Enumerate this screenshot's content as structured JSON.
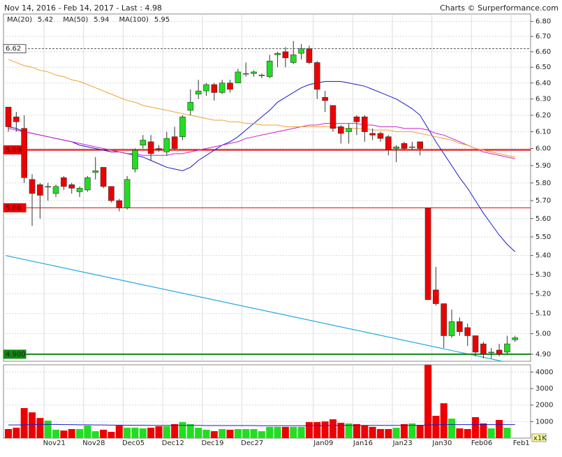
{
  "chart_data": {
    "type": "candlestick",
    "title": "Nov 14, 2016 - Feb 14, 2017 - Last : 4.98",
    "credit": "Charts © Surperformance.com",
    "log_scale": true,
    "grid": true,
    "up_color": "#22dd22",
    "down_color": "#ee0000",
    "categories": [
      null,
      null,
      null,
      null,
      null,
      "Nov21",
      null,
      null,
      null,
      null,
      "Nov28",
      null,
      null,
      null,
      null,
      "Dec05",
      null,
      null,
      null,
      null,
      "Dec12",
      null,
      null,
      null,
      null,
      "Dec19",
      null,
      null,
      null,
      null,
      "Dec27",
      null,
      null,
      null,
      null,
      null,
      null,
      null,
      null,
      "Jan09",
      null,
      null,
      null,
      null,
      "Jan16",
      null,
      null,
      null,
      null,
      "Jan23",
      null,
      null,
      null,
      null,
      "Jan30",
      null,
      null,
      null,
      null,
      "Feb06",
      null,
      null,
      null,
      null,
      "Feb1"
    ],
    "open": [
      6.25,
      6.19,
      6.12,
      5.82,
      5.79,
      5.78,
      5.74,
      5.83,
      5.79,
      5.75,
      5.76,
      5.86,
      5.89,
      5.78,
      5.7,
      5.66,
      5.88,
      6.02,
      6.04,
      6.0,
      5.98,
      6.07,
      6.07,
      6.23,
      6.33,
      6.35,
      6.39,
      6.34,
      6.4,
      6.4,
      6.46,
      6.46,
      6.45,
      6.44,
      6.58,
      6.6,
      6.53,
      6.59,
      6.62,
      6.53,
      6.31,
      6.26,
      6.13,
      6.1,
      6.19,
      6.19,
      6.09,
      6.09,
      6.07,
      6.0,
      6.03,
      6.01,
      6.04,
      5.66,
      5.22,
      5.15,
      4.99,
      5.06,
      5.03,
      4.99,
      4.95,
      4.91,
      4.92,
      4.91,
      4.97
    ],
    "high": [
      6.25,
      6.22,
      6.2,
      5.85,
      5.8,
      5.8,
      5.79,
      5.84,
      5.8,
      5.78,
      5.84,
      5.95,
      5.89,
      5.78,
      5.71,
      5.84,
      6.0,
      6.08,
      6.08,
      6.02,
      6.1,
      6.13,
      6.2,
      6.36,
      6.42,
      6.4,
      6.4,
      6.42,
      6.42,
      6.49,
      6.53,
      6.48,
      6.46,
      6.58,
      6.6,
      6.63,
      6.67,
      6.65,
      6.64,
      6.54,
      6.35,
      6.26,
      6.14,
      6.15,
      6.2,
      6.2,
      6.12,
      6.1,
      6.08,
      6.02,
      6.04,
      6.04,
      6.04,
      5.66,
      5.34,
      5.15,
      5.12,
      5.08,
      5.05,
      4.99,
      4.96,
      4.93,
      4.95,
      4.99,
      4.99
    ],
    "low": [
      6.1,
      6.1,
      5.8,
      5.56,
      5.6,
      5.7,
      5.72,
      5.76,
      5.74,
      5.72,
      5.75,
      5.82,
      5.77,
      5.69,
      5.64,
      5.65,
      5.86,
      6.0,
      5.93,
      5.98,
      5.96,
      5.99,
      6.05,
      6.2,
      6.3,
      6.32,
      6.29,
      6.33,
      6.34,
      6.4,
      6.44,
      6.44,
      6.43,
      6.43,
      6.5,
      6.5,
      6.52,
      6.55,
      6.52,
      6.3,
      6.22,
      6.1,
      6.03,
      6.03,
      6.08,
      6.04,
      6.05,
      6.04,
      5.96,
      5.92,
      5.99,
      5.99,
      5.96,
      5.17,
      5.14,
      4.93,
      4.98,
      4.99,
      4.94,
      4.89,
      4.88,
      4.88,
      4.89,
      4.9,
      4.96
    ],
    "close": [
      6.13,
      6.16,
      5.83,
      5.74,
      5.73,
      5.78,
      5.78,
      5.78,
      5.77,
      5.77,
      5.83,
      5.87,
      5.78,
      5.7,
      5.66,
      5.82,
      5.99,
      6.05,
      5.97,
      5.99,
      6.06,
      6.0,
      6.19,
      6.28,
      6.35,
      6.39,
      6.34,
      6.4,
      6.36,
      6.47,
      6.46,
      6.47,
      6.45,
      6.54,
      6.59,
      6.56,
      6.58,
      6.62,
      6.53,
      6.36,
      6.29,
      6.12,
      6.09,
      6.12,
      6.16,
      6.1,
      6.08,
      6.06,
      5.99,
      6.01,
      6.0,
      6.01,
      6.0,
      5.17,
      5.15,
      4.99,
      5.06,
      5.01,
      4.99,
      4.91,
      4.9,
      4.91,
      4.9,
      4.95,
      4.98
    ],
    "ylim": [
      4.866,
      6.85
    ],
    "yticks": [
      {
        "value": 4.9,
        "label": "4.90"
      },
      {
        "value": 5.0,
        "label": "5.00"
      },
      {
        "value": 5.1,
        "label": "5.10"
      },
      {
        "value": 5.2,
        "label": "5.20"
      },
      {
        "value": 5.3,
        "label": "5.30"
      },
      {
        "value": 5.4,
        "label": "5.40"
      },
      {
        "value": 5.5,
        "label": "5.50"
      },
      {
        "value": 5.6,
        "label": "5.60"
      },
      {
        "value": 5.7,
        "label": "5.70"
      },
      {
        "value": 5.8,
        "label": "5.80"
      },
      {
        "value": 5.9,
        "label": "5.90"
      },
      {
        "value": 6.0,
        "label": "6.00"
      },
      {
        "value": 6.1,
        "label": "6.10"
      },
      {
        "value": 6.2,
        "label": "6.20"
      },
      {
        "value": 6.3,
        "label": "6.30"
      },
      {
        "value": 6.4,
        "label": "6.40"
      },
      {
        "value": 6.5,
        "label": "6.50"
      },
      {
        "value": 6.6,
        "label": "6.60"
      },
      {
        "value": 6.7,
        "label": "6.70"
      },
      {
        "value": 6.8,
        "label": "6.80"
      }
    ],
    "series": [
      {
        "name": "MA(20)",
        "color": "#1a1acc",
        "legend_value": 5.42,
        "values": [
          6.13,
          6.12,
          6.1,
          6.09,
          6.08,
          6.07,
          6.06,
          6.05,
          6.04,
          6.02,
          6.01,
          6.0,
          5.99,
          5.98,
          5.98,
          5.97,
          5.96,
          5.95,
          5.93,
          5.91,
          5.89,
          5.88,
          5.87,
          5.89,
          5.93,
          5.96,
          5.99,
          6.02,
          6.04,
          6.07,
          6.11,
          6.15,
          6.19,
          6.23,
          6.28,
          6.31,
          6.34,
          6.37,
          6.39,
          6.4,
          6.41,
          6.41,
          6.41,
          6.4,
          6.39,
          6.38,
          6.36,
          6.34,
          6.32,
          6.3,
          6.27,
          6.24,
          6.2,
          6.12,
          6.04,
          5.97,
          5.9,
          5.83,
          5.77,
          5.7,
          5.63,
          5.57,
          5.51,
          5.46,
          5.42
        ]
      },
      {
        "name": "MA(50)",
        "color": "#cc22cc",
        "legend_value": 5.94,
        "values": [
          6.12,
          6.11,
          6.1,
          6.09,
          6.08,
          6.07,
          6.06,
          6.05,
          6.04,
          6.03,
          6.02,
          6.01,
          6.0,
          5.99,
          5.98,
          5.97,
          5.97,
          5.96,
          5.96,
          5.96,
          5.96,
          5.97,
          5.97,
          5.98,
          5.99,
          6.0,
          6.01,
          6.02,
          6.03,
          6.04,
          6.06,
          6.07,
          6.08,
          6.09,
          6.1,
          6.11,
          6.12,
          6.13,
          6.14,
          6.14,
          6.15,
          6.15,
          6.15,
          6.15,
          6.15,
          6.14,
          6.14,
          6.13,
          6.13,
          6.13,
          6.12,
          6.12,
          6.12,
          6.11,
          6.09,
          6.08,
          6.06,
          6.04,
          6.02,
          6.0,
          5.98,
          5.97,
          5.96,
          5.95,
          5.94
        ]
      },
      {
        "name": "MA(100)",
        "color": "#f0a030",
        "legend_value": 5.95,
        "values": [
          6.55,
          6.53,
          6.51,
          6.5,
          6.48,
          6.47,
          6.45,
          6.44,
          6.42,
          6.41,
          6.39,
          6.37,
          6.35,
          6.33,
          6.31,
          6.29,
          6.28,
          6.26,
          6.25,
          6.24,
          6.23,
          6.22,
          6.21,
          6.2,
          6.19,
          6.18,
          6.17,
          6.17,
          6.16,
          6.16,
          6.15,
          6.15,
          6.14,
          6.14,
          6.14,
          6.13,
          6.13,
          6.13,
          6.13,
          6.13,
          6.13,
          6.13,
          6.12,
          6.12,
          6.12,
          6.12,
          6.11,
          6.11,
          6.11,
          6.1,
          6.1,
          6.1,
          6.09,
          6.08,
          6.07,
          6.06,
          6.05,
          6.03,
          6.02,
          6.0,
          5.99,
          5.98,
          5.97,
          5.96,
          5.95
        ]
      }
    ],
    "levels": [
      {
        "value": 6.62,
        "color": "#555555",
        "style": "dashed"
      },
      {
        "value": 5.992,
        "color": "#ee0000",
        "style": "bold"
      },
      {
        "value": 5.66,
        "color": "#ee0000",
        "style": "solid"
      },
      {
        "value": 4.9,
        "label": "4.900",
        "color": "#118811",
        "style": "bold"
      }
    ],
    "trend_line": {
      "color": "#22aadd",
      "values": [
        5.4,
        4.86
      ]
    },
    "volume": {
      "unit_label": "x1K",
      "ylim": [
        0,
        4440
      ],
      "yticks": [
        1000,
        2000,
        3000,
        4000
      ],
      "values": [
        550,
        630,
        1820,
        1560,
        1220,
        1060,
        510,
        460,
        550,
        550,
        760,
        420,
        510,
        380,
        760,
        630,
        630,
        590,
        630,
        720,
        720,
        850,
        970,
        850,
        630,
        510,
        420,
        550,
        510,
        550,
        550,
        550,
        420,
        680,
        680,
        680,
        680,
        680,
        970,
        970,
        1010,
        1140,
        930,
        890,
        850,
        760,
        680,
        550,
        550,
        630,
        850,
        890,
        800,
        4500,
        1350,
        2110,
        1180,
        590,
        550,
        1270,
        890,
        590,
        1100,
        630,
        0
      ],
      "ma": {
        "color": "#1a1acc",
        "values": [
          800,
          800,
          810,
          820,
          830,
          830,
          830,
          820,
          820,
          810,
          810,
          800,
          800,
          790,
          790,
          780,
          780,
          780,
          770,
          770,
          770,
          770,
          770,
          770,
          770,
          760,
          760,
          760,
          760,
          760,
          760,
          760,
          750,
          750,
          750,
          750,
          750,
          750,
          760,
          760,
          760,
          770,
          770,
          770,
          770,
          770,
          770,
          770,
          770,
          770,
          770,
          770,
          770,
          800,
          810,
          820,
          820,
          820,
          820,
          820,
          820,
          820,
          820,
          820,
          820
        ]
      }
    }
  }
}
